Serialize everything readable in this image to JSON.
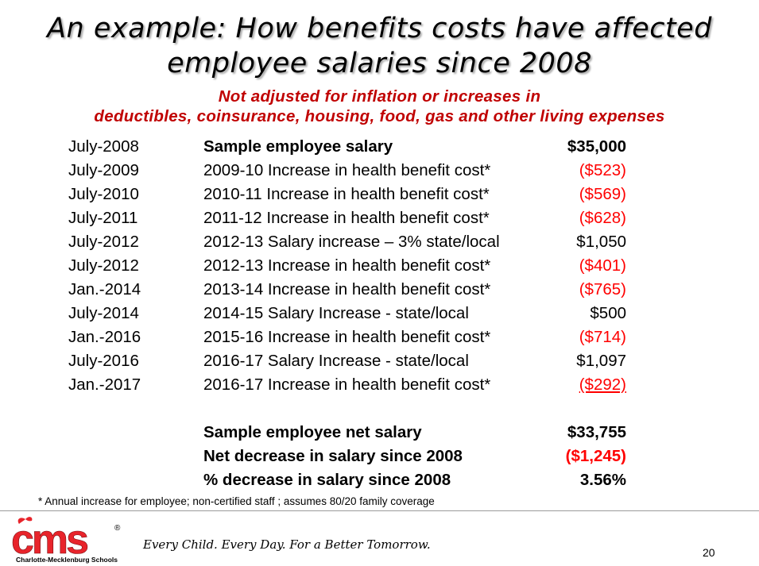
{
  "slide": {
    "title_line1": "An example: How benefits costs have affected",
    "title_line2": "employee salaries since 2008",
    "subtitle_line1": "Not adjusted for inflation or increases in",
    "subtitle_line2": "deductibles, coinsurance, housing, food, gas and other living expenses",
    "subtitle_color": "#c00000",
    "negative_color": "#ff0000"
  },
  "rows": [
    {
      "date": "July-2008",
      "desc": "Sample employee salary",
      "amount": "$35,000"
    },
    {
      "date": "July-2009",
      "desc": "2009-10 Increase in health benefit cost*",
      "amount": "($523)"
    },
    {
      "date": "July-2010",
      "desc": "2010-11 Increase in health benefit cost*",
      "amount": "($569)"
    },
    {
      "date": "July-2011",
      "desc": "2011-12 Increase in health benefit cost*",
      "amount": "($628)"
    },
    {
      "date": "July-2012",
      "desc": "2012-13 Salary increase – 3% state/local",
      "amount": "$1,050"
    },
    {
      "date": "July-2012",
      "desc": "2012-13 Increase in health benefit cost*",
      "amount": "($401)"
    },
    {
      "date": "Jan.-2014",
      "desc": "2013-14 Increase in health benefit cost*",
      "amount": "($765)"
    },
    {
      "date": "July-2014",
      "desc": "2014-15 Salary Increase - state/local",
      "amount": "$500"
    },
    {
      "date": "Jan.-2016",
      "desc": "2015-16 Increase in health benefit cost*",
      "amount": "($714)"
    },
    {
      "date": "July-2016",
      "desc": "2016-17 Salary Increase - state/local",
      "amount": "$1,097"
    },
    {
      "date": "Jan.-2017",
      "desc": "2016-17 Increase in health benefit cost*",
      "amount": "($292)"
    }
  ],
  "summary": [
    {
      "desc": "Sample employee net salary",
      "amount": "$33,755"
    },
    {
      "desc": "Net decrease in salary since 2008",
      "amount": "($1,245)"
    },
    {
      "desc": "% decrease in salary since 2008",
      "amount": "3.56%"
    }
  ],
  "footnote": "* Annual increase for employee; non-certified staff ; assumes 80/20 family coverage",
  "footer": {
    "logo_text": "cms",
    "logo_registered": "®",
    "logo_subtext": "Charlotte-Mecklenburg Schools",
    "logo_color": "#e8242b",
    "tagline": "Every Child. Every Day. For a Better Tomorrow.",
    "page_number": "20"
  }
}
